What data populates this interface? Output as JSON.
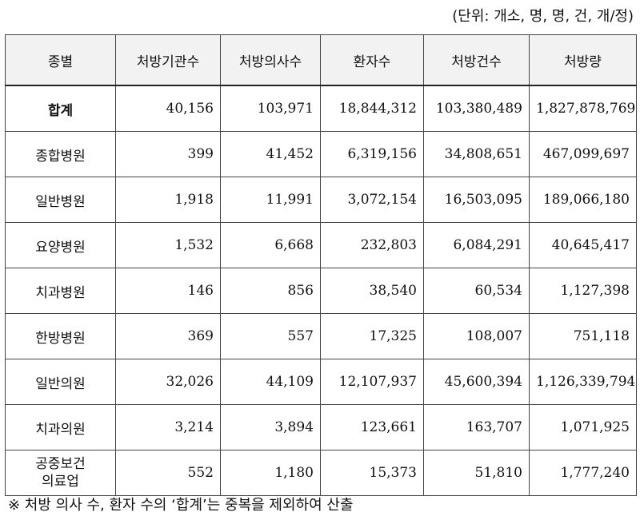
{
  "unit_label": "(단위: 개소, 명, 명, 건, 개/정)",
  "columns": [
    "종별",
    "처방기관수",
    "처방의사수",
    "환자수",
    "처방건수",
    "처방량"
  ],
  "rows": [
    {
      "name": "합계",
      "values": [
        "40,156",
        "103,971",
        "18,844,312",
        "103,380,489",
        "1,827,878,769"
      ]
    },
    {
      "name": "종합병원",
      "values": [
        "399",
        "41,452",
        "6,319,156",
        "34,808,651",
        "467,099,697"
      ]
    },
    {
      "name": "일반병원",
      "values": [
        "1,918",
        "11,991",
        "3,072,154",
        "16,503,095",
        "189,066,180"
      ]
    },
    {
      "name": "요양병원",
      "values": [
        "1,532",
        "6,668",
        "232,803",
        "6,084,291",
        "40,645,417"
      ]
    },
    {
      "name": "치과병원",
      "values": [
        "146",
        "856",
        "38,540",
        "60,534",
        "1,127,398"
      ]
    },
    {
      "name": "한방병원",
      "values": [
        "369",
        "557",
        "17,325",
        "108,007",
        "751,118"
      ]
    },
    {
      "name": "일반의원",
      "values": [
        "32,026",
        "44,109",
        "12,107,937",
        "45,600,394",
        "1,126,339,794"
      ]
    },
    {
      "name": "치과의원",
      "values": [
        "3,214",
        "3,894",
        "123,661",
        "163,707",
        "1,071,925"
      ]
    },
    {
      "name": "공중보건\n의료업",
      "values": [
        "552",
        "1,180",
        "15,373",
        "51,810",
        "1,777,240"
      ]
    }
  ],
  "footnote": "※ 처방 의사 수, 환자 수의 ‘합계’는 중복을 제외하여 산출"
}
